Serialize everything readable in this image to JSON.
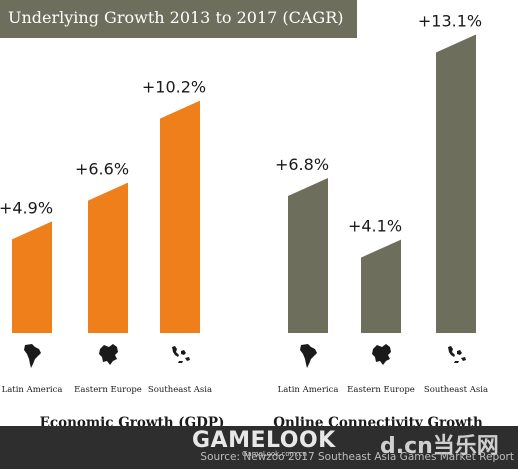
{
  "header": {
    "title": "Underlying Growth 2013 to 2017 (CAGR)"
  },
  "footer": {
    "source": "Source: Newzoo 2017 Southeast Asia Games Market Report",
    "watermark_main": "GAMELOOK",
    "watermark_sub": "GameLook.com.cn",
    "watermark_right": "d.cn当乐网"
  },
  "colors": {
    "gdp_bar": "#ef7f1a",
    "connectivity_bar": "#6e6e5c",
    "title_bar": "#6e6e5c"
  },
  "chart_data": [
    {
      "type": "bar",
      "title": "Economic Growth (GDP)",
      "categories": [
        "Latin America",
        "Eastern Europe",
        "Southeast Asia"
      ],
      "values": [
        4.9,
        6.6,
        10.2
      ],
      "labels": [
        "+4.9%",
        "+6.6%",
        "+10.2%"
      ],
      "unit": "%",
      "icons": [
        "latin-america-map-icon",
        "eastern-europe-map-icon",
        "southeast-asia-map-icon"
      ],
      "ylim": [
        0,
        14
      ],
      "grid": false
    },
    {
      "type": "bar",
      "title": "Online Connectivity Growth",
      "categories": [
        "Latin America",
        "Eastern Europe",
        "Southeast Asia"
      ],
      "values": [
        6.8,
        4.1,
        13.1
      ],
      "labels": [
        "+6.8%",
        "+4.1%",
        "+13.1%"
      ],
      "unit": "%",
      "icons": [
        "latin-america-map-icon",
        "eastern-europe-map-icon",
        "southeast-asia-map-icon"
      ],
      "ylim": [
        0,
        14
      ],
      "grid": false
    }
  ]
}
